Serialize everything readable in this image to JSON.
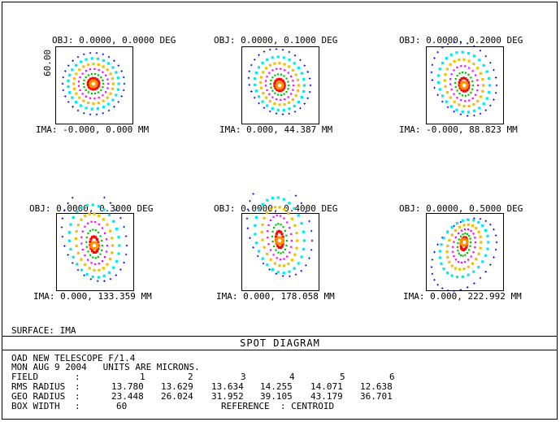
{
  "fields": [
    {
      "obj": "OBJ: 0.0000, 0.0000 DEG",
      "ima": "IMA: -0.000, 0.000 MM",
      "shape": 0
    },
    {
      "obj": "OBJ: 0.0000, 0.1000 DEG",
      "ima": "IMA: 0.000, 44.387 MM",
      "shape": 1
    },
    {
      "obj": "OBJ: 0.0000, 0.2000 DEG",
      "ima": "IMA: -0.000, 88.823 MM",
      "shape": 2
    },
    {
      "obj": "OBJ: 0.0000, 0.3000 DEG",
      "ima": "IMA: 0.000, 133.359 MM",
      "shape": 3
    },
    {
      "obj": "OBJ: 0.0000, 0.4000 DEG",
      "ima": "IMA: 0.000, 178.058 MM",
      "shape": 4
    },
    {
      "obj": "OBJ: 0.0000, 0.5000 DEG",
      "ima": "IMA: 0.000, 222.992 MM",
      "shape": 5
    }
  ],
  "box_scale_label": "60.00",
  "surface": "SURFACE: IMA",
  "title": "SPOT DIAGRAM",
  "info": {
    "line1": "OAD NEW TELESCOPE F/1.4",
    "line2": "MON AUG 9 2004   UNITS ARE MICRONS.",
    "field_label": "FIELD",
    "rms_label": "RMS RADIUS",
    "geo_label": "GEO RADIUS",
    "box_label": "BOX WIDTH",
    "colon": ":",
    "field_nums": [
      "1",
      "2",
      "3",
      "4",
      "5",
      "6"
    ],
    "rms": [
      "13.780",
      "13.629",
      "13.634",
      "14.255",
      "14.071",
      "12.638"
    ],
    "geo": [
      "23.448",
      "26.024",
      "31.952",
      "39.105",
      "43.179",
      "36.701"
    ],
    "box_width": "60",
    "reference": "REFERENCE  : CENTROID"
  },
  "colors": {
    "blue": "#0000e0",
    "cyan": "#00e8f0",
    "yellow": "#f0c000",
    "magenta": "#ff00ff",
    "green": "#00c000",
    "red": "#ff0000",
    "orange": "#ff9000"
  }
}
